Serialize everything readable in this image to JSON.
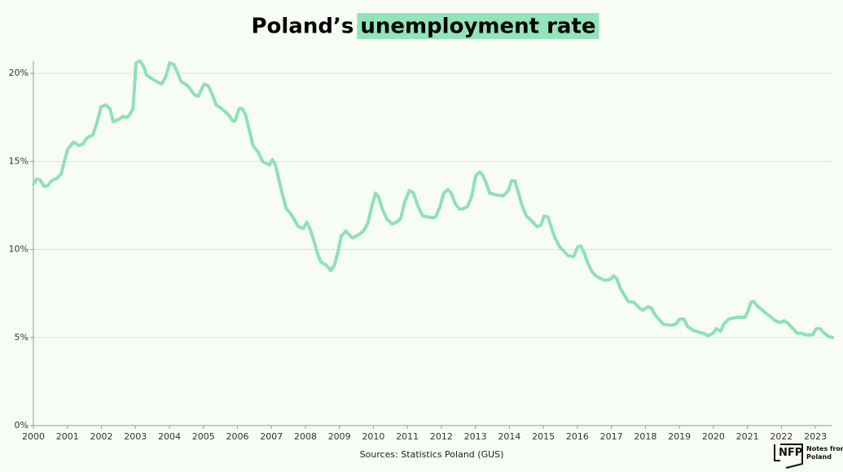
{
  "chart_data": {
    "type": "line",
    "title_prefix": "Poland’s",
    "title_highlight": "unemployment rate",
    "source": "Sources: Statistics Poland (GUS)",
    "series": [
      {
        "name": "Unemployment rate",
        "color": "#8fe1b7",
        "x": [
          2000,
          2000.1,
          2000.19,
          2000.31,
          2000.41,
          2000.53,
          2000.7,
          2000.82,
          2000.91,
          2001.01,
          2001.18,
          2001.34,
          2001.46,
          2001.58,
          2001.75,
          2001.87,
          2001.99,
          2002.13,
          2002.25,
          2002.35,
          2002.52,
          2002.64,
          2002.76,
          2002.81,
          2002.93,
          2003.02,
          2003.14,
          2003.24,
          2003.33,
          2003.57,
          2003.77,
          2003.89,
          2004.01,
          2004.13,
          2004.25,
          2004.34,
          2004.54,
          2004.73,
          2004.85,
          2005.02,
          2005.14,
          2005.26,
          2005.38,
          2005.54,
          2005.74,
          2005.86,
          2005.93,
          2006.05,
          2006.14,
          2006.24,
          2006.36,
          2006.46,
          2006.62,
          2006.74,
          2006.94,
          2007.03,
          2007.13,
          2007.22,
          2007.34,
          2007.44,
          2007.54,
          2007.66,
          2007.79,
          2007.94,
          2008.04,
          2008.13,
          2008.25,
          2008.35,
          2008.45,
          2008.62,
          2008.75,
          2008.85,
          2008.95,
          2009.05,
          2009.19,
          2009.38,
          2009.58,
          2009.71,
          2009.84,
          2009.94,
          2010.06,
          2010.15,
          2010.25,
          2010.39,
          2010.54,
          2010.68,
          2010.8,
          2010.92,
          2011.06,
          2011.18,
          2011.3,
          2011.45,
          2011.74,
          2011.83,
          2011.95,
          2012.07,
          2012.19,
          2012.29,
          2012.41,
          2012.53,
          2012.62,
          2012.77,
          2012.89,
          2013.01,
          2013.13,
          2013.22,
          2013.32,
          2013.42,
          2013.61,
          2013.82,
          2013.97,
          2014.06,
          2014.16,
          2014.26,
          2014.38,
          2014.5,
          2014.64,
          2014.81,
          2014.93,
          2015.02,
          2015.14,
          2015.24,
          2015.34,
          2015.48,
          2015.58,
          2015.72,
          2015.89,
          2016.01,
          2016.1,
          2016.2,
          2016.3,
          2016.42,
          2016.54,
          2016.68,
          2016.82,
          2016.97,
          2017.06,
          2017.16,
          2017.26,
          2017.4,
          2017.5,
          2017.66,
          2017.81,
          2017.93,
          2018.07,
          2018.17,
          2018.26,
          2018.41,
          2018.53,
          2018.74,
          2018.89,
          2019.01,
          2019.13,
          2019.25,
          2019.42,
          2019.58,
          2019.7,
          2019.85,
          2019.99,
          2020.09,
          2020.21,
          2020.3,
          2020.45,
          2020.69,
          2020.93,
          2021.02,
          2021.1,
          2021.19,
          2021.29,
          2021.41,
          2021.53,
          2021.7,
          2021.82,
          2021.96,
          2022.08,
          2022.2,
          2022.34,
          2022.46,
          2022.58,
          2022.73,
          2022.92,
          2023.02,
          2023.14,
          2023.26,
          2023.4,
          2023.5
        ],
        "values": [
          13.7,
          14.0,
          13.95,
          13.6,
          13.6,
          13.9,
          14.05,
          14.3,
          15.0,
          15.7,
          16.1,
          15.9,
          16.0,
          16.35,
          16.5,
          17.2,
          18.1,
          18.2,
          18.0,
          17.25,
          17.4,
          17.55,
          17.5,
          17.6,
          18.0,
          20.6,
          20.7,
          20.4,
          19.9,
          19.6,
          19.4,
          19.8,
          20.6,
          20.5,
          20.0,
          19.55,
          19.3,
          18.8,
          18.7,
          19.4,
          19.3,
          18.8,
          18.2,
          18.0,
          17.65,
          17.3,
          17.3,
          18.0,
          18.0,
          17.65,
          16.7,
          15.9,
          15.5,
          15.0,
          14.8,
          15.1,
          14.75,
          13.95,
          13.0,
          12.3,
          12.1,
          11.75,
          11.3,
          11.2,
          11.55,
          11.2,
          10.5,
          9.8,
          9.3,
          9.1,
          8.8,
          9.1,
          9.8,
          10.75,
          11.05,
          10.65,
          10.85,
          11.05,
          11.5,
          12.35,
          13.2,
          13.0,
          12.35,
          11.75,
          11.45,
          11.55,
          11.75,
          12.7,
          13.35,
          13.2,
          12.5,
          11.9,
          11.8,
          11.85,
          12.4,
          13.2,
          13.4,
          13.2,
          12.6,
          12.3,
          12.3,
          12.45,
          13.0,
          14.2,
          14.4,
          14.2,
          13.75,
          13.2,
          13.1,
          13.05,
          13.35,
          13.9,
          13.9,
          13.25,
          12.45,
          11.9,
          11.65,
          11.3,
          11.4,
          11.9,
          11.85,
          11.2,
          10.65,
          10.15,
          9.95,
          9.65,
          9.6,
          10.15,
          10.2,
          9.8,
          9.25,
          8.75,
          8.5,
          8.35,
          8.25,
          8.3,
          8.5,
          8.35,
          7.8,
          7.35,
          7.05,
          7.0,
          6.7,
          6.55,
          6.75,
          6.7,
          6.35,
          6.0,
          5.75,
          5.7,
          5.75,
          6.05,
          6.05,
          5.6,
          5.4,
          5.3,
          5.25,
          5.1,
          5.25,
          5.5,
          5.35,
          5.75,
          6.05,
          6.15,
          6.15,
          6.5,
          7.0,
          7.05,
          6.8,
          6.6,
          6.4,
          6.15,
          5.95,
          5.85,
          5.95,
          5.8,
          5.5,
          5.25,
          5.25,
          5.15,
          5.15,
          5.5,
          5.5,
          5.25,
          5.05,
          5.0
        ]
      }
    ],
    "xlim": [
      2000,
      2023.5
    ],
    "xticks": [
      2000,
      2001,
      2002,
      2003,
      2004,
      2005,
      2006,
      2007,
      2008,
      2009,
      2010,
      2011,
      2012,
      2013,
      2014,
      2015,
      2016,
      2017,
      2018,
      2019,
      2020,
      2021,
      2022,
      2023
    ],
    "ylim": [
      0,
      20.7
    ],
    "yticks": [
      {
        "value": 0,
        "label": "0%"
      },
      {
        "value": 5,
        "label": "5%"
      },
      {
        "value": 10,
        "label": "10%"
      },
      {
        "value": 15,
        "label": "15%"
      },
      {
        "value": 20,
        "label": "20%"
      }
    ],
    "grid": true,
    "highlight_color": "#93e3bb"
  },
  "logo": {
    "mark": "NFP",
    "text": [
      "Notes from",
      "Poland"
    ]
  }
}
